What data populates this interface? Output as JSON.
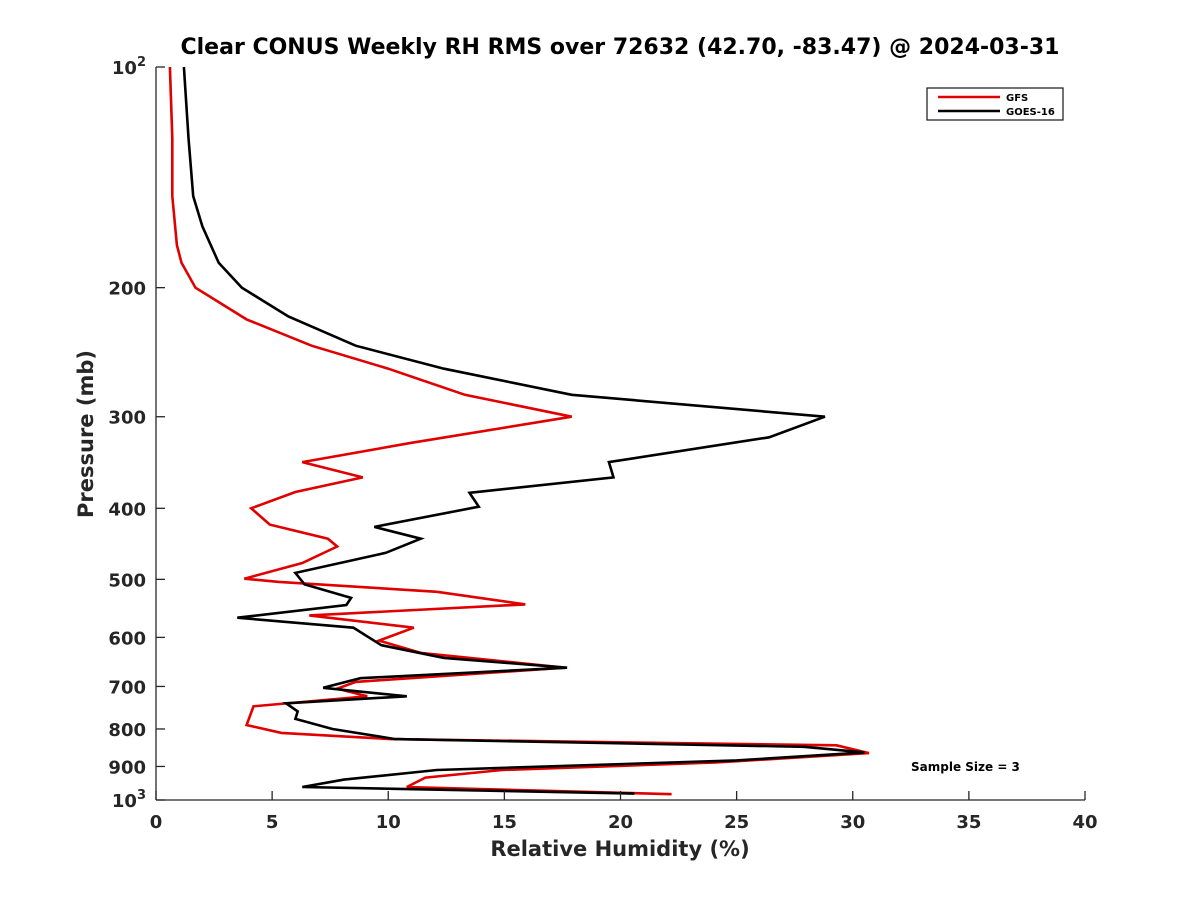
{
  "chart_data": {
    "type": "line",
    "title": "Clear CONUS Weekly RH RMS over 72632 (42.70, -83.47) @ 2024-03-31",
    "xlabel": "Relative Humidity (%)",
    "ylabel": "Pressure (mb)",
    "xlim": [
      0,
      40
    ],
    "ylim": [
      100,
      1000
    ],
    "yscale": "log",
    "y_reversed": true,
    "grid": false,
    "legend_position": "top-right",
    "annotation": "Sample Size = 3",
    "x_ticks": [
      {
        "value": 0,
        "label": "0"
      },
      {
        "value": 5,
        "label": "5"
      },
      {
        "value": 10,
        "label": "10"
      },
      {
        "value": 15,
        "label": "15"
      },
      {
        "value": 20,
        "label": "20"
      },
      {
        "value": 25,
        "label": "25"
      },
      {
        "value": 30,
        "label": "30"
      },
      {
        "value": 35,
        "label": "35"
      },
      {
        "value": 40,
        "label": "40"
      }
    ],
    "y_ticks": [
      {
        "value": 100,
        "base": "10",
        "exp": "2"
      },
      {
        "value": 200,
        "base": "200",
        "exp": ""
      },
      {
        "value": 300,
        "base": "300",
        "exp": ""
      },
      {
        "value": 400,
        "base": "400",
        "exp": ""
      },
      {
        "value": 500,
        "base": "500",
        "exp": ""
      },
      {
        "value": 600,
        "base": "600",
        "exp": ""
      },
      {
        "value": 700,
        "base": "700",
        "exp": ""
      },
      {
        "value": 800,
        "base": "800",
        "exp": ""
      },
      {
        "value": 900,
        "base": "900",
        "exp": ""
      },
      {
        "value": 1000,
        "base": "10",
        "exp": "3"
      }
    ],
    "series": [
      {
        "name": "GFS",
        "color": "#e00000",
        "points": [
          [
            0.6,
            100
          ],
          [
            0.7,
            125
          ],
          [
            0.7,
            150
          ],
          [
            0.9,
            175
          ],
          [
            1.1,
            185
          ],
          [
            1.7,
            200
          ],
          [
            3.9,
            221
          ],
          [
            6.7,
            240
          ],
          [
            10.0,
            258
          ],
          [
            13.3,
            280
          ],
          [
            17.9,
            300
          ],
          [
            10.9,
            326
          ],
          [
            6.3,
            346
          ],
          [
            8.9,
            363
          ],
          [
            6.0,
            380
          ],
          [
            4.1,
            400
          ],
          [
            4.9,
            421
          ],
          [
            7.4,
            440
          ],
          [
            7.8,
            451
          ],
          [
            6.3,
            475
          ],
          [
            3.8,
            499
          ],
          [
            5.3,
            504
          ],
          [
            12.1,
            520
          ],
          [
            15.9,
            541
          ],
          [
            6.6,
            560
          ],
          [
            11.1,
            582
          ],
          [
            9.6,
            606
          ],
          [
            11.4,
            630
          ],
          [
            17.6,
            660
          ],
          [
            8.6,
            690
          ],
          [
            7.8,
            705
          ],
          [
            9.1,
            722
          ],
          [
            4.2,
            745
          ],
          [
            3.9,
            790
          ],
          [
            5.4,
            810
          ],
          [
            10.1,
            826
          ],
          [
            29.3,
            842
          ],
          [
            30.7,
            863
          ],
          [
            24.1,
            889
          ],
          [
            14.9,
            910
          ],
          [
            11.6,
            932
          ],
          [
            10.8,
            960
          ],
          [
            22.2,
            982
          ]
        ]
      },
      {
        "name": "GOES-16",
        "color": "#000000",
        "points": [
          [
            1.2,
            100
          ],
          [
            1.4,
            125
          ],
          [
            1.6,
            150
          ],
          [
            2.0,
            165
          ],
          [
            2.7,
            185
          ],
          [
            3.7,
            200
          ],
          [
            5.7,
            219
          ],
          [
            8.6,
            240
          ],
          [
            12.4,
            258
          ],
          [
            17.9,
            280
          ],
          [
            28.8,
            300
          ],
          [
            26.4,
            320
          ],
          [
            19.5,
            346
          ],
          [
            19.7,
            363
          ],
          [
            13.5,
            381
          ],
          [
            13.9,
            398
          ],
          [
            9.4,
            424
          ],
          [
            11.4,
            440
          ],
          [
            9.9,
            460
          ],
          [
            6.0,
            490
          ],
          [
            6.4,
            508
          ],
          [
            8.4,
            530
          ],
          [
            8.2,
            542
          ],
          [
            3.5,
            564
          ],
          [
            8.5,
            582
          ],
          [
            9.7,
            615
          ],
          [
            12.4,
            640
          ],
          [
            17.7,
            660
          ],
          [
            8.8,
            682
          ],
          [
            7.2,
            703
          ],
          [
            10.8,
            722
          ],
          [
            5.6,
            738
          ],
          [
            6.1,
            757
          ],
          [
            6.0,
            775
          ],
          [
            7.6,
            800
          ],
          [
            10.3,
            826
          ],
          [
            27.9,
            846
          ],
          [
            30.5,
            861
          ],
          [
            25.0,
            883
          ],
          [
            12.1,
            910
          ],
          [
            8.1,
            938
          ],
          [
            6.3,
            960
          ],
          [
            20.6,
            980
          ]
        ]
      }
    ]
  }
}
